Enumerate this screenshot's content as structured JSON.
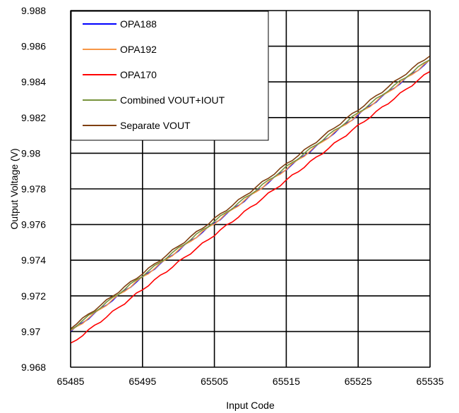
{
  "chart_data": {
    "type": "line",
    "title": "",
    "xlabel": "Input Code",
    "ylabel": "Output Voltage (V)",
    "xlim": [
      65485,
      65535
    ],
    "ylim": [
      9.968,
      9.988
    ],
    "xticks": [
      65485,
      65495,
      65505,
      65515,
      65525,
      65535
    ],
    "yticks": [
      9.968,
      9.97,
      9.972,
      9.974,
      9.976,
      9.978,
      9.98,
      9.982,
      9.984,
      9.986,
      9.988
    ],
    "ytick_labels": [
      "9.968",
      "9.97",
      "9.972",
      "9.974",
      "9.976",
      "9.978",
      "9.98",
      "9.982",
      "9.984",
      "9.986",
      "9.988"
    ],
    "grid": true,
    "legend_position": "top-left",
    "series": [
      {
        "name": "OPA188",
        "color": "#0000ff",
        "x": [
          65485,
          65535
        ],
        "y": [
          9.97,
          9.9852
        ]
      },
      {
        "name": "OPA192",
        "color": "#f79646",
        "x": [
          65485,
          65535
        ],
        "y": [
          9.97,
          9.9852
        ]
      },
      {
        "name": "OPA170",
        "color": "#ff0000",
        "x": [
          65485,
          65535
        ],
        "y": [
          9.9693,
          9.9846
        ]
      },
      {
        "name": "Combined VOUT+IOUT",
        "color": "#77933c",
        "x": [
          65485,
          65535
        ],
        "y": [
          9.9701,
          9.9853
        ]
      },
      {
        "name": "Separate VOUT",
        "color": "#7f3f10",
        "x": [
          65485,
          65535
        ],
        "y": [
          9.9702,
          9.9855
        ]
      }
    ]
  }
}
